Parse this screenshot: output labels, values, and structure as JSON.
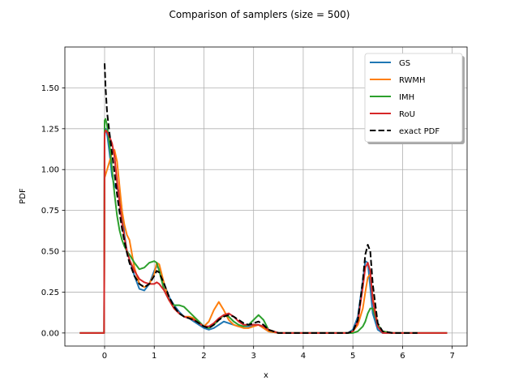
{
  "chart_data": {
    "type": "line",
    "title": "Comparison of samplers (size = 500)",
    "xlabel": "x",
    "ylabel": "PDF",
    "xlim": [
      -0.8,
      7.3
    ],
    "ylim": [
      -0.08,
      1.75
    ],
    "xticks": [
      0,
      1,
      2,
      3,
      4,
      5,
      6,
      7
    ],
    "xtick_labels": [
      "0",
      "1",
      "2",
      "3",
      "4",
      "5",
      "6",
      "7"
    ],
    "yticks": [
      0,
      0.25,
      0.5,
      0.75,
      1.0,
      1.25,
      1.5
    ],
    "ytick_labels": [
      "0.00",
      "0.25",
      "0.50",
      "0.75",
      "1.00",
      "1.25",
      "1.50"
    ],
    "grid": true,
    "legend_position": "top-right",
    "series": [
      {
        "name": "GS",
        "color": "#1f77b4",
        "dash": "solid",
        "x": [
          -0.5,
          -0.01,
          0.0,
          0.02,
          0.05,
          0.1,
          0.15,
          0.2,
          0.25,
          0.3,
          0.35,
          0.4,
          0.45,
          0.5,
          0.6,
          0.7,
          0.8,
          0.9,
          1.0,
          1.05,
          1.1,
          1.2,
          1.3,
          1.4,
          1.5,
          1.6,
          1.7,
          1.8,
          1.9,
          2.0,
          2.1,
          2.2,
          2.3,
          2.4,
          2.5,
          2.6,
          2.7,
          2.8,
          2.9,
          3.0,
          3.1,
          3.2,
          3.3,
          3.5,
          4.0,
          4.5,
          4.9,
          5.0,
          5.1,
          5.2,
          5.25,
          5.3,
          5.35,
          5.4,
          5.5,
          5.6,
          5.8,
          6.5,
          6.9
        ],
        "y": [
          0,
          0,
          1.2,
          1.25,
          1.22,
          1.1,
          0.96,
          0.9,
          0.88,
          0.87,
          0.75,
          0.6,
          0.5,
          0.45,
          0.35,
          0.27,
          0.26,
          0.3,
          0.38,
          0.41,
          0.39,
          0.3,
          0.22,
          0.17,
          0.13,
          0.1,
          0.09,
          0.07,
          0.05,
          0.03,
          0.02,
          0.03,
          0.05,
          0.07,
          0.06,
          0.05,
          0.04,
          0.04,
          0.04,
          0.05,
          0.05,
          0.03,
          0.01,
          0.0,
          0.0,
          0.0,
          0.0,
          0.02,
          0.1,
          0.32,
          0.44,
          0.43,
          0.28,
          0.12,
          0.02,
          0.0,
          0.0,
          0.0,
          0.0
        ]
      },
      {
        "name": "RWMH",
        "color": "#ff7f0e",
        "dash": "solid",
        "x": [
          -0.5,
          -0.01,
          0.0,
          0.02,
          0.05,
          0.1,
          0.15,
          0.2,
          0.25,
          0.3,
          0.35,
          0.4,
          0.45,
          0.5,
          0.6,
          0.7,
          0.8,
          0.9,
          1.0,
          1.05,
          1.1,
          1.2,
          1.3,
          1.4,
          1.5,
          1.6,
          1.7,
          1.8,
          1.9,
          2.0,
          2.1,
          2.2,
          2.3,
          2.4,
          2.5,
          2.6,
          2.7,
          2.8,
          2.9,
          3.0,
          3.1,
          3.2,
          3.3,
          3.5,
          4.0,
          4.5,
          4.9,
          5.0,
          5.1,
          5.2,
          5.25,
          5.3,
          5.35,
          5.4,
          5.5,
          5.6,
          5.8,
          6.5,
          6.9
        ],
        "y": [
          0,
          0,
          0.95,
          0.97,
          1.0,
          1.05,
          1.1,
          1.12,
          1.05,
          0.9,
          0.75,
          0.66,
          0.6,
          0.57,
          0.4,
          0.3,
          0.28,
          0.3,
          0.36,
          0.43,
          0.42,
          0.3,
          0.2,
          0.15,
          0.12,
          0.1,
          0.1,
          0.09,
          0.06,
          0.04,
          0.07,
          0.14,
          0.19,
          0.14,
          0.08,
          0.05,
          0.04,
          0.03,
          0.03,
          0.04,
          0.05,
          0.03,
          0.01,
          0.0,
          0.0,
          0.0,
          0.0,
          0.01,
          0.05,
          0.15,
          0.25,
          0.34,
          0.36,
          0.22,
          0.05,
          0.01,
          0.0,
          0.0,
          0.0
        ]
      },
      {
        "name": "IMH",
        "color": "#2ca02c",
        "dash": "solid",
        "x": [
          -0.5,
          -0.01,
          0.0,
          0.02,
          0.05,
          0.1,
          0.15,
          0.2,
          0.25,
          0.3,
          0.35,
          0.4,
          0.45,
          0.5,
          0.6,
          0.7,
          0.8,
          0.9,
          1.0,
          1.05,
          1.1,
          1.2,
          1.3,
          1.4,
          1.5,
          1.6,
          1.7,
          1.8,
          1.9,
          2.0,
          2.1,
          2.2,
          2.3,
          2.4,
          2.5,
          2.6,
          2.7,
          2.8,
          2.9,
          3.0,
          3.1,
          3.2,
          3.3,
          3.5,
          4.0,
          4.5,
          4.9,
          5.0,
          5.1,
          5.2,
          5.25,
          5.3,
          5.35,
          5.4,
          5.5,
          5.6,
          5.8,
          6.5,
          6.9
        ],
        "y": [
          0,
          0,
          1.3,
          1.31,
          1.27,
          1.15,
          1.0,
          0.85,
          0.72,
          0.63,
          0.57,
          0.53,
          0.5,
          0.48,
          0.43,
          0.39,
          0.4,
          0.43,
          0.44,
          0.43,
          0.38,
          0.26,
          0.2,
          0.17,
          0.17,
          0.16,
          0.13,
          0.1,
          0.07,
          0.04,
          0.03,
          0.05,
          0.08,
          0.11,
          0.1,
          0.07,
          0.05,
          0.04,
          0.05,
          0.08,
          0.11,
          0.08,
          0.02,
          0.0,
          0.0,
          0.0,
          0.0,
          0.0,
          0.01,
          0.04,
          0.07,
          0.12,
          0.15,
          0.15,
          0.05,
          0.01,
          0.0,
          0.0,
          0.0
        ]
      },
      {
        "name": "RoU",
        "color": "#d62728",
        "dash": "solid",
        "x": [
          -0.5,
          -0.01,
          0.0,
          0.02,
          0.05,
          0.1,
          0.15,
          0.2,
          0.25,
          0.3,
          0.35,
          0.4,
          0.45,
          0.5,
          0.6,
          0.7,
          0.8,
          0.9,
          1.0,
          1.05,
          1.1,
          1.2,
          1.3,
          1.4,
          1.5,
          1.6,
          1.7,
          1.8,
          1.9,
          2.0,
          2.1,
          2.2,
          2.3,
          2.4,
          2.5,
          2.6,
          2.7,
          2.8,
          2.9,
          3.0,
          3.1,
          3.2,
          3.3,
          3.5,
          4.0,
          4.5,
          4.9,
          5.0,
          5.1,
          5.2,
          5.25,
          5.3,
          5.35,
          5.4,
          5.5,
          5.6,
          5.8,
          6.5,
          6.9
        ],
        "y": [
          0,
          0,
          1.22,
          1.24,
          1.23,
          1.2,
          1.16,
          1.08,
          0.93,
          0.8,
          0.68,
          0.58,
          0.5,
          0.45,
          0.38,
          0.33,
          0.31,
          0.3,
          0.3,
          0.31,
          0.3,
          0.26,
          0.2,
          0.15,
          0.12,
          0.1,
          0.09,
          0.08,
          0.06,
          0.04,
          0.04,
          0.06,
          0.09,
          0.11,
          0.12,
          0.1,
          0.07,
          0.05,
          0.05,
          0.05,
          0.05,
          0.04,
          0.02,
          0.0,
          0.0,
          0.0,
          0.0,
          0.01,
          0.07,
          0.28,
          0.4,
          0.43,
          0.38,
          0.2,
          0.04,
          0.0,
          0.0,
          0.0,
          0.0
        ]
      },
      {
        "name": "exact PDF",
        "color": "#000000",
        "dash": "dashed",
        "x": [
          0.0,
          0.02,
          0.05,
          0.1,
          0.15,
          0.2,
          0.25,
          0.3,
          0.35,
          0.4,
          0.45,
          0.5,
          0.6,
          0.7,
          0.8,
          0.9,
          1.0,
          1.05,
          1.1,
          1.2,
          1.3,
          1.4,
          1.5,
          1.6,
          1.7,
          1.8,
          1.9,
          2.0,
          2.1,
          2.2,
          2.3,
          2.4,
          2.5,
          2.6,
          2.7,
          2.8,
          2.9,
          3.0,
          3.1,
          3.2,
          3.3,
          3.5,
          4.0,
          4.5,
          4.9,
          5.0,
          5.1,
          5.2,
          5.25,
          5.3,
          5.35,
          5.4,
          5.5,
          5.6,
          5.8,
          6.3
        ],
        "y": [
          1.65,
          1.5,
          1.35,
          1.22,
          1.1,
          0.98,
          0.85,
          0.74,
          0.64,
          0.56,
          0.49,
          0.43,
          0.35,
          0.3,
          0.28,
          0.3,
          0.35,
          0.38,
          0.37,
          0.3,
          0.22,
          0.16,
          0.12,
          0.1,
          0.09,
          0.08,
          0.06,
          0.04,
          0.03,
          0.05,
          0.08,
          0.1,
          0.11,
          0.1,
          0.08,
          0.06,
          0.05,
          0.06,
          0.07,
          0.05,
          0.02,
          0.0,
          0.0,
          0.0,
          0.0,
          0.01,
          0.08,
          0.32,
          0.48,
          0.54,
          0.5,
          0.3,
          0.06,
          0.01,
          0.0,
          0.0
        ]
      }
    ]
  }
}
